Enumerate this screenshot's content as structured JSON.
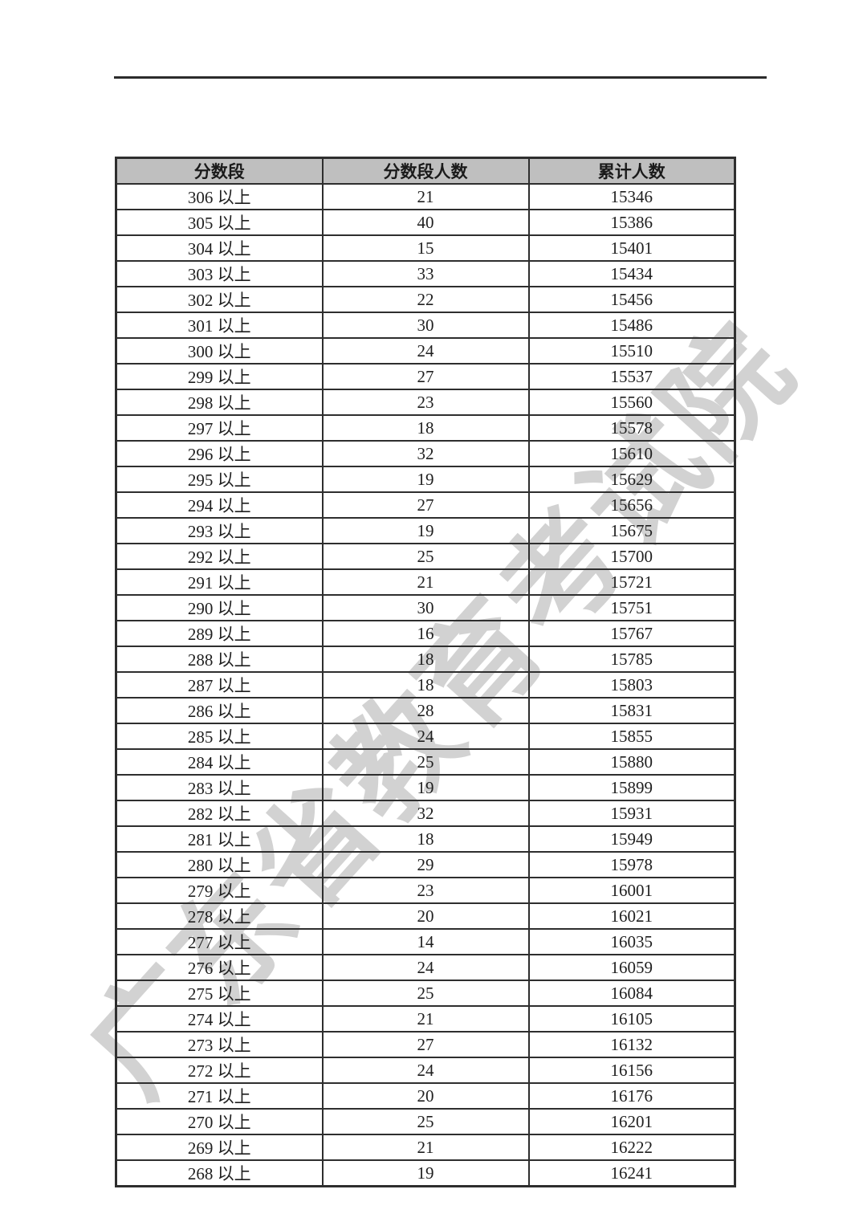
{
  "watermark": {
    "text": "广东省教育考试院",
    "color": "#d2d2d2"
  },
  "divider": {
    "color": "#2b2b2b"
  },
  "table": {
    "header_bg": "#bfbfbf",
    "border_color": "#2e2e2e",
    "headers": [
      "分数段",
      "分数段人数",
      "累计人数"
    ],
    "rows": [
      {
        "band": "306 以上",
        "count": "21",
        "cumulative": "15346"
      },
      {
        "band": "305 以上",
        "count": "40",
        "cumulative": "15386"
      },
      {
        "band": "304 以上",
        "count": "15",
        "cumulative": "15401"
      },
      {
        "band": "303 以上",
        "count": "33",
        "cumulative": "15434"
      },
      {
        "band": "302 以上",
        "count": "22",
        "cumulative": "15456"
      },
      {
        "band": "301 以上",
        "count": "30",
        "cumulative": "15486"
      },
      {
        "band": "300 以上",
        "count": "24",
        "cumulative": "15510"
      },
      {
        "band": "299 以上",
        "count": "27",
        "cumulative": "15537"
      },
      {
        "band": "298 以上",
        "count": "23",
        "cumulative": "15560"
      },
      {
        "band": "297 以上",
        "count": "18",
        "cumulative": "15578"
      },
      {
        "band": "296 以上",
        "count": "32",
        "cumulative": "15610"
      },
      {
        "band": "295 以上",
        "count": "19",
        "cumulative": "15629"
      },
      {
        "band": "294 以上",
        "count": "27",
        "cumulative": "15656"
      },
      {
        "band": "293 以上",
        "count": "19",
        "cumulative": "15675"
      },
      {
        "band": "292 以上",
        "count": "25",
        "cumulative": "15700"
      },
      {
        "band": "291 以上",
        "count": "21",
        "cumulative": "15721"
      },
      {
        "band": "290 以上",
        "count": "30",
        "cumulative": "15751"
      },
      {
        "band": "289 以上",
        "count": "16",
        "cumulative": "15767"
      },
      {
        "band": "288 以上",
        "count": "18",
        "cumulative": "15785"
      },
      {
        "band": "287 以上",
        "count": "18",
        "cumulative": "15803"
      },
      {
        "band": "286 以上",
        "count": "28",
        "cumulative": "15831"
      },
      {
        "band": "285 以上",
        "count": "24",
        "cumulative": "15855"
      },
      {
        "band": "284 以上",
        "count": "25",
        "cumulative": "15880"
      },
      {
        "band": "283 以上",
        "count": "19",
        "cumulative": "15899"
      },
      {
        "band": "282 以上",
        "count": "32",
        "cumulative": "15931"
      },
      {
        "band": "281 以上",
        "count": "18",
        "cumulative": "15949"
      },
      {
        "band": "280 以上",
        "count": "29",
        "cumulative": "15978"
      },
      {
        "band": "279 以上",
        "count": "23",
        "cumulative": "16001"
      },
      {
        "band": "278 以上",
        "count": "20",
        "cumulative": "16021"
      },
      {
        "band": "277 以上",
        "count": "14",
        "cumulative": "16035"
      },
      {
        "band": "276 以上",
        "count": "24",
        "cumulative": "16059"
      },
      {
        "band": "275 以上",
        "count": "25",
        "cumulative": "16084"
      },
      {
        "band": "274 以上",
        "count": "21",
        "cumulative": "16105"
      },
      {
        "band": "273 以上",
        "count": "27",
        "cumulative": "16132"
      },
      {
        "band": "272 以上",
        "count": "24",
        "cumulative": "16156"
      },
      {
        "band": "271 以上",
        "count": "20",
        "cumulative": "16176"
      },
      {
        "band": "270 以上",
        "count": "25",
        "cumulative": "16201"
      },
      {
        "band": "269 以上",
        "count": "21",
        "cumulative": "16222"
      },
      {
        "band": "268 以上",
        "count": "19",
        "cumulative": "16241"
      }
    ]
  }
}
